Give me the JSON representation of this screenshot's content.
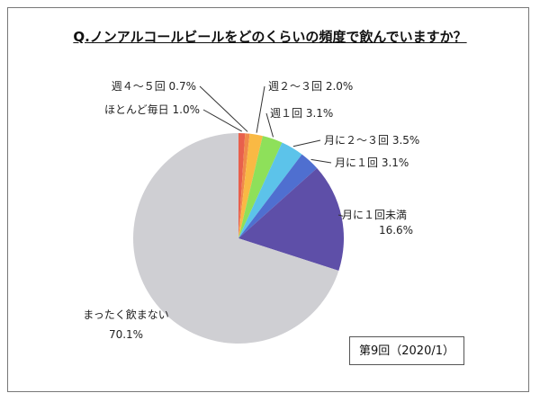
{
  "chart_data": {
    "type": "pie",
    "title": "Q.ノンアルコールビールをどのくらいの頻度で飲んでいますか？",
    "note": "第9回（2020/1）",
    "slices": [
      {
        "label": "ほとんど毎日",
        "value": 1.0,
        "text": "ほとんど毎日 1.0%",
        "color": "#e8604c"
      },
      {
        "label": "週４～５回",
        "value": 0.7,
        "text": "週４～５回 0.7%",
        "color": "#f08a4a"
      },
      {
        "label": "週２～３回",
        "value": 2.0,
        "text": "週２～３回 2.0%",
        "color": "#f9b944"
      },
      {
        "label": "週１回",
        "value": 3.1,
        "text": "週１回 3.1%",
        "color": "#8ee05a"
      },
      {
        "label": "月に２～３回",
        "value": 3.5,
        "text": "月に２～３回 3.5%",
        "color": "#5cc3ea"
      },
      {
        "label": "月に１回",
        "value": 3.1,
        "text": "月に１回 3.1%",
        "color": "#4f6fd0"
      },
      {
        "label": "月に１回未満",
        "value": 16.6,
        "text": "月に１回未満",
        "pct": "16.6%",
        "color": "#5e4fa8"
      },
      {
        "label": "まったく飲まない",
        "value": 70.1,
        "text": "まったく飲まない",
        "pct": "70.1%",
        "color": "#cfcfd3"
      }
    ]
  }
}
